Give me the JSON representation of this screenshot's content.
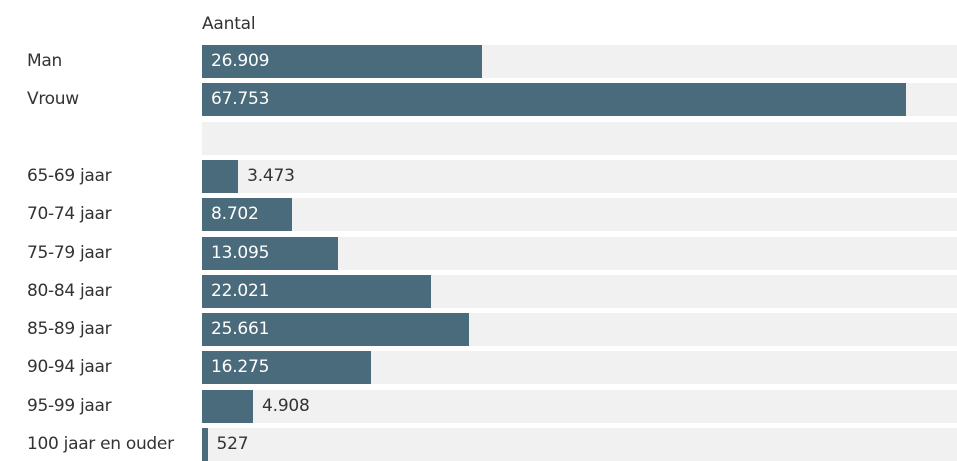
{
  "header": {
    "column_title": "Aantal"
  },
  "colors": {
    "bar": "#4a6b7b",
    "track": "#f1f1f1",
    "text": "#333333",
    "inside_text": "#ffffff"
  },
  "chart_data": {
    "type": "bar",
    "orientation": "horizontal",
    "title": "",
    "column_header": "Aantal",
    "xlim": [
      0,
      72700
    ],
    "grid": false,
    "categories": [
      "Man",
      "Vrouw",
      "",
      "65-69 jaar",
      "70-74 jaar",
      "75-79 jaar",
      "80-84 jaar",
      "85-89 jaar",
      "90-94 jaar",
      "95-99 jaar",
      "100 jaar en ouder"
    ],
    "values": [
      26909,
      67753,
      null,
      3473,
      8702,
      13095,
      22021,
      25661,
      16275,
      4908,
      527
    ],
    "value_labels": [
      "26.909",
      "67.753",
      "",
      "3.473",
      "8.702",
      "13.095",
      "22.021",
      "25.661",
      "16.275",
      "4.908",
      "527"
    ]
  }
}
